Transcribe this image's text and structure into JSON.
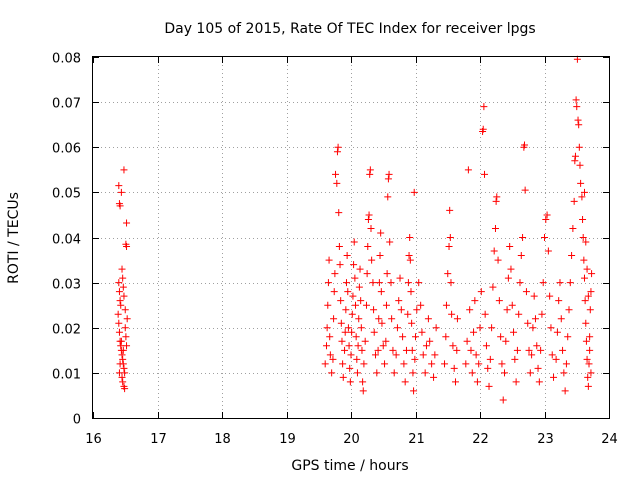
{
  "chart_data": {
    "type": "scatter",
    "title": "Day 105 of 2015, Rate Of TEC Index for receiver lpgs",
    "xlabel": "GPS time / hours",
    "ylabel": "ROTI / TECUs",
    "xlim": [
      16,
      24
    ],
    "ylim": [
      0,
      0.08
    ],
    "x_ticks": [
      "16",
      "17",
      "18",
      "19",
      "20",
      "21",
      "22",
      "23",
      "24"
    ],
    "y_ticks": [
      "0",
      "0.01",
      "0.02",
      "0.03",
      "0.04",
      "0.05",
      "0.06",
      "0.07",
      "0.08"
    ],
    "grid": true,
    "marker": "+",
    "color": "#ff0000",
    "series": [
      {
        "name": "ROTI",
        "points": [
          [
            16.4,
            0.0515
          ],
          [
            16.41,
            0.0475
          ],
          [
            16.42,
            0.047
          ],
          [
            16.44,
            0.05
          ],
          [
            16.48,
            0.055
          ],
          [
            16.52,
            0.0432
          ],
          [
            16.51,
            0.0385
          ],
          [
            16.52,
            0.038
          ],
          [
            16.4,
            0.03
          ],
          [
            16.41,
            0.028
          ],
          [
            16.42,
            0.026
          ],
          [
            16.43,
            0.025
          ],
          [
            16.45,
            0.033
          ],
          [
            16.46,
            0.031
          ],
          [
            16.47,
            0.029
          ],
          [
            16.48,
            0.027
          ],
          [
            16.39,
            0.023
          ],
          [
            16.4,
            0.021
          ],
          [
            16.41,
            0.019
          ],
          [
            16.42,
            0.017
          ],
          [
            16.43,
            0.016
          ],
          [
            16.44,
            0.015
          ],
          [
            16.45,
            0.014
          ],
          [
            16.46,
            0.013
          ],
          [
            16.47,
            0.012
          ],
          [
            16.48,
            0.011
          ],
          [
            16.49,
            0.01
          ],
          [
            16.5,
            0.02
          ],
          [
            16.51,
            0.018
          ],
          [
            16.52,
            0.016
          ],
          [
            16.53,
            0.022
          ],
          [
            16.5,
            0.024
          ],
          [
            16.45,
            0.009
          ],
          [
            16.46,
            0.008
          ],
          [
            16.48,
            0.007
          ],
          [
            16.49,
            0.0065
          ],
          [
            16.41,
            0.01
          ],
          [
            16.42,
            0.012
          ],
          [
            16.44,
            0.017
          ],
          [
            16.47,
            0.015
          ],
          [
            19.6,
            0.012
          ],
          [
            19.62,
            0.016
          ],
          [
            19.63,
            0.02
          ],
          [
            19.64,
            0.025
          ],
          [
            19.65,
            0.03
          ],
          [
            19.66,
            0.035
          ],
          [
            19.67,
            0.018
          ],
          [
            19.68,
            0.014
          ],
          [
            19.7,
            0.01
          ],
          [
            19.72,
            0.013
          ],
          [
            19.73,
            0.022
          ],
          [
            19.74,
            0.028
          ],
          [
            19.75,
            0.032
          ],
          [
            19.76,
            0.054
          ],
          [
            19.78,
            0.052
          ],
          [
            19.79,
            0.059
          ],
          [
            19.8,
            0.06
          ],
          [
            19.81,
            0.0455
          ],
          [
            19.82,
            0.038
          ],
          [
            19.83,
            0.034
          ],
          [
            19.84,
            0.026
          ],
          [
            19.85,
            0.021
          ],
          [
            19.86,
            0.017
          ],
          [
            19.87,
            0.012
          ],
          [
            19.88,
            0.009
          ],
          [
            19.9,
            0.015
          ],
          [
            19.91,
            0.019
          ],
          [
            19.92,
            0.024
          ],
          [
            19.93,
            0.03
          ],
          [
            19.94,
            0.036
          ],
          [
            19.95,
            0.028
          ],
          [
            19.96,
            0.02
          ],
          [
            19.97,
            0.016
          ],
          [
            19.98,
            0.011
          ],
          [
            19.99,
            0.008
          ],
          [
            20.0,
            0.014
          ],
          [
            20.01,
            0.019
          ],
          [
            20.02,
            0.023
          ],
          [
            20.03,
            0.027
          ],
          [
            20.04,
            0.034
          ],
          [
            20.05,
            0.039
          ],
          [
            20.06,
            0.031
          ],
          [
            20.07,
            0.025
          ],
          [
            20.08,
            0.018
          ],
          [
            20.09,
            0.013
          ],
          [
            20.1,
            0.01
          ],
          [
            20.11,
            0.016
          ],
          [
            20.12,
            0.022
          ],
          [
            20.13,
            0.029
          ],
          [
            20.14,
            0.033
          ],
          [
            20.15,
            0.026
          ],
          [
            20.16,
            0.02
          ],
          [
            20.17,
            0.015
          ],
          [
            20.18,
            0.008
          ],
          [
            20.19,
            0.006
          ],
          [
            20.2,
            0.012
          ],
          [
            20.22,
            0.017
          ],
          [
            20.24,
            0.025
          ],
          [
            20.25,
            0.032
          ],
          [
            20.26,
            0.038
          ],
          [
            20.27,
            0.044
          ],
          [
            20.28,
            0.045
          ],
          [
            20.29,
            0.054
          ],
          [
            20.3,
            0.055
          ],
          [
            20.31,
            0.042
          ],
          [
            20.32,
            0.035
          ],
          [
            20.34,
            0.03
          ],
          [
            20.35,
            0.024
          ],
          [
            20.36,
            0.019
          ],
          [
            20.38,
            0.014
          ],
          [
            20.4,
            0.01
          ],
          [
            20.42,
            0.015
          ],
          [
            20.43,
            0.022
          ],
          [
            20.44,
            0.03
          ],
          [
            20.45,
            0.036
          ],
          [
            20.46,
            0.041
          ],
          [
            20.47,
            0.028
          ],
          [
            20.48,
            0.021
          ],
          [
            20.5,
            0.016
          ],
          [
            20.52,
            0.012
          ],
          [
            20.54,
            0.017
          ],
          [
            20.55,
            0.025
          ],
          [
            20.56,
            0.032
          ],
          [
            20.57,
            0.049
          ],
          [
            20.58,
            0.053
          ],
          [
            20.59,
            0.054
          ],
          [
            20.6,
            0.039
          ],
          [
            20.62,
            0.03
          ],
          [
            20.63,
            0.022
          ],
          [
            20.65,
            0.015
          ],
          [
            20.67,
            0.01
          ],
          [
            20.7,
            0.014
          ],
          [
            20.72,
            0.02
          ],
          [
            20.74,
            0.026
          ],
          [
            20.76,
            0.031
          ],
          [
            20.78,
            0.024
          ],
          [
            20.8,
            0.018
          ],
          [
            20.82,
            0.012
          ],
          [
            20.84,
            0.008
          ],
          [
            20.86,
            0.015
          ],
          [
            20.88,
            0.023
          ],
          [
            20.89,
            0.03
          ],
          [
            20.9,
            0.036
          ],
          [
            20.91,
            0.04
          ],
          [
            20.92,
            0.035
          ],
          [
            20.93,
            0.028
          ],
          [
            20.94,
            0.021
          ],
          [
            20.95,
            0.015
          ],
          [
            20.96,
            0.01
          ],
          [
            20.97,
            0.006
          ],
          [
            20.98,
            0.05
          ],
          [
            20.99,
            0.013
          ],
          [
            21.0,
            0.018
          ],
          [
            21.02,
            0.024
          ],
          [
            21.05,
            0.03
          ],
          [
            21.08,
            0.025
          ],
          [
            21.1,
            0.019
          ],
          [
            21.12,
            0.014
          ],
          [
            21.15,
            0.01
          ],
          [
            21.17,
            0.016
          ],
          [
            21.2,
            0.022
          ],
          [
            21.22,
            0.017
          ],
          [
            21.25,
            0.012
          ],
          [
            21.28,
            0.009
          ],
          [
            21.3,
            0.014
          ],
          [
            21.32,
            0.02
          ],
          [
            21.45,
            0.012
          ],
          [
            21.47,
            0.018
          ],
          [
            21.48,
            0.025
          ],
          [
            21.5,
            0.032
          ],
          [
            21.52,
            0.038
          ],
          [
            21.53,
            0.046
          ],
          [
            21.54,
            0.04
          ],
          [
            21.55,
            0.03
          ],
          [
            21.56,
            0.023
          ],
          [
            21.58,
            0.016
          ],
          [
            21.6,
            0.011
          ],
          [
            21.62,
            0.008
          ],
          [
            21.64,
            0.015
          ],
          [
            21.65,
            0.022
          ],
          [
            21.78,
            0.012
          ],
          [
            21.8,
            0.017
          ],
          [
            21.82,
            0.055
          ],
          [
            21.84,
            0.024
          ],
          [
            21.86,
            0.015
          ],
          [
            21.88,
            0.01
          ],
          [
            21.9,
            0.019
          ],
          [
            21.92,
            0.026
          ],
          [
            21.94,
            0.014
          ],
          [
            21.96,
            0.008
          ],
          [
            21.98,
            0.012
          ],
          [
            22.0,
            0.02
          ],
          [
            22.02,
            0.028
          ],
          [
            22.04,
            0.0635
          ],
          [
            22.05,
            0.064
          ],
          [
            22.06,
            0.069
          ],
          [
            22.07,
            0.054
          ],
          [
            22.08,
            0.023
          ],
          [
            22.1,
            0.016
          ],
          [
            22.12,
            0.011
          ],
          [
            22.14,
            0.007
          ],
          [
            22.16,
            0.013
          ],
          [
            22.18,
            0.02
          ],
          [
            22.2,
            0.029
          ],
          [
            22.22,
            0.037
          ],
          [
            22.24,
            0.042
          ],
          [
            22.25,
            0.048
          ],
          [
            22.26,
            0.049
          ],
          [
            22.28,
            0.035
          ],
          [
            22.3,
            0.026
          ],
          [
            22.32,
            0.018
          ],
          [
            22.34,
            0.012
          ],
          [
            22.36,
            0.004
          ],
          [
            22.38,
            0.01
          ],
          [
            22.4,
            0.017
          ],
          [
            22.42,
            0.024
          ],
          [
            22.44,
            0.031
          ],
          [
            22.46,
            0.038
          ],
          [
            22.48,
            0.033
          ],
          [
            22.5,
            0.025
          ],
          [
            22.52,
            0.019
          ],
          [
            22.54,
            0.013
          ],
          [
            22.56,
            0.008
          ],
          [
            22.58,
            0.015
          ],
          [
            22.6,
            0.023
          ],
          [
            22.62,
            0.03
          ],
          [
            22.64,
            0.036
          ],
          [
            22.66,
            0.04
          ],
          [
            22.68,
            0.06
          ],
          [
            22.69,
            0.0605
          ],
          [
            22.7,
            0.0505
          ],
          [
            22.72,
            0.028
          ],
          [
            22.74,
            0.021
          ],
          [
            22.76,
            0.015
          ],
          [
            22.78,
            0.01
          ],
          [
            22.8,
            0.014
          ],
          [
            22.82,
            0.02
          ],
          [
            22.84,
            0.027
          ],
          [
            22.86,
            0.022
          ],
          [
            22.88,
            0.016
          ],
          [
            22.9,
            0.011
          ],
          [
            22.92,
            0.008
          ],
          [
            22.94,
            0.015
          ],
          [
            22.96,
            0.023
          ],
          [
            22.98,
            0.03
          ],
          [
            23.0,
            0.04
          ],
          [
            23.02,
            0.044
          ],
          [
            23.04,
            0.045
          ],
          [
            23.06,
            0.037
          ],
          [
            23.08,
            0.027
          ],
          [
            23.1,
            0.02
          ],
          [
            23.12,
            0.014
          ],
          [
            23.14,
            0.009
          ],
          [
            23.18,
            0.013
          ],
          [
            23.2,
            0.019
          ],
          [
            23.22,
            0.026
          ],
          [
            23.24,
            0.03
          ],
          [
            23.26,
            0.022
          ],
          [
            23.28,
            0.015
          ],
          [
            23.3,
            0.01
          ],
          [
            23.32,
            0.006
          ],
          [
            23.34,
            0.012
          ],
          [
            23.36,
            0.018
          ],
          [
            23.38,
            0.024
          ],
          [
            23.4,
            0.03
          ],
          [
            23.42,
            0.036
          ],
          [
            23.44,
            0.042
          ],
          [
            23.46,
            0.048
          ],
          [
            23.47,
            0.057
          ],
          [
            23.48,
            0.058
          ],
          [
            23.49,
            0.0705
          ],
          [
            23.5,
            0.069
          ],
          [
            23.51,
            0.0795
          ],
          [
            23.52,
            0.066
          ],
          [
            23.53,
            0.065
          ],
          [
            23.54,
            0.06
          ],
          [
            23.55,
            0.056
          ],
          [
            23.56,
            0.052
          ],
          [
            23.58,
            0.049
          ],
          [
            23.59,
            0.044
          ],
          [
            23.6,
            0.04
          ],
          [
            23.61,
            0.035
          ],
          [
            23.62,
            0.031
          ],
          [
            23.63,
            0.026
          ],
          [
            23.64,
            0.021
          ],
          [
            23.65,
            0.017
          ],
          [
            23.66,
            0.013
          ],
          [
            23.67,
            0.009
          ],
          [
            23.68,
            0.007
          ],
          [
            23.69,
            0.012
          ],
          [
            23.7,
            0.018
          ],
          [
            23.71,
            0.024
          ],
          [
            23.72,
            0.028
          ],
          [
            23.73,
            0.032
          ],
          [
            23.62,
            0.05
          ],
          [
            23.64,
            0.039
          ],
          [
            23.66,
            0.033
          ],
          [
            23.68,
            0.027
          ],
          [
            23.7,
            0.015
          ],
          [
            23.72,
            0.01
          ]
        ]
      }
    ]
  }
}
